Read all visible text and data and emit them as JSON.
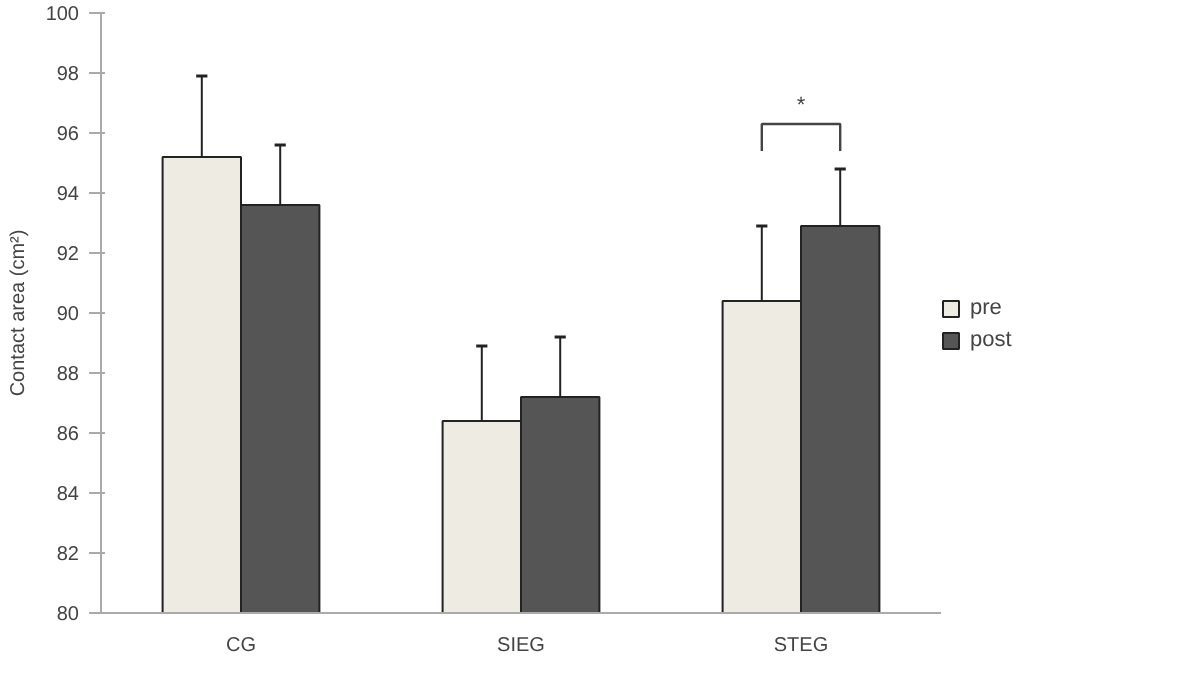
{
  "chart_data": {
    "type": "bar",
    "ylabel": "Contact area (cm²)",
    "categories": [
      "CG",
      "SIEG",
      "STEG"
    ],
    "series": [
      {
        "name": "pre",
        "color": "#eeebe3",
        "values": [
          95.2,
          86.4,
          90.4
        ],
        "errors": [
          [
            95.2,
            97.9
          ],
          [
            86.4,
            88.9
          ],
          [
            90.4,
            92.9
          ]
        ]
      },
      {
        "name": "post",
        "color": "#555555",
        "values": [
          93.6,
          87.2,
          92.9
        ],
        "errors": [
          [
            93.6,
            95.6
          ],
          [
            87.2,
            89.2
          ],
          [
            92.9,
            94.8
          ]
        ]
      }
    ],
    "ylim": [
      80,
      100
    ],
    "yticks": [
      80,
      82,
      84,
      86,
      88,
      90,
      92,
      94,
      96,
      98,
      100
    ],
    "annotations": [
      "*"
    ],
    "grid": false,
    "legend": "right"
  }
}
